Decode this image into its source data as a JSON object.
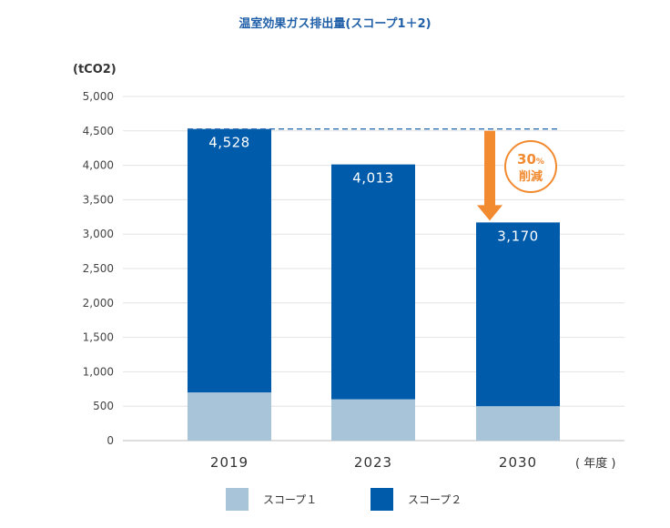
{
  "chart_data": {
    "type": "bar",
    "stacked": true,
    "title": "温室効果ガス排出量(スコープ1＋2)",
    "ylabel": "(tCO2)",
    "xlabel": "( 年度 )",
    "categories": [
      "2019",
      "2023",
      "2030"
    ],
    "series": [
      {
        "name": "スコープ１",
        "values": [
          700,
          600,
          500
        ],
        "color": "#a7c4d9"
      },
      {
        "name": "スコープ２",
        "values": [
          3828,
          3413,
          2670
        ],
        "color": "#005bab"
      }
    ],
    "totals": [
      4528,
      4013,
      3170
    ],
    "total_labels": [
      "4,528",
      "4,013",
      "3,170"
    ],
    "ylim": [
      0,
      5000
    ],
    "yticks": [
      0,
      500,
      1000,
      1500,
      2000,
      2500,
      3000,
      3500,
      4000,
      4500,
      5000
    ],
    "ytick_labels": [
      "0",
      "500",
      "1,000",
      "1,500",
      "2,000",
      "2,500",
      "3,000",
      "3,500",
      "4,000",
      "4,500",
      "5,000"
    ],
    "grid": true,
    "legend_position": "bottom",
    "reference_line": {
      "value": 4528,
      "style": "dashed",
      "color": "#2e6db4"
    },
    "annotation": {
      "percent": "30",
      "percent_unit": "%",
      "label": "削減",
      "color": "#f28a30",
      "from_category": "2030"
    }
  }
}
